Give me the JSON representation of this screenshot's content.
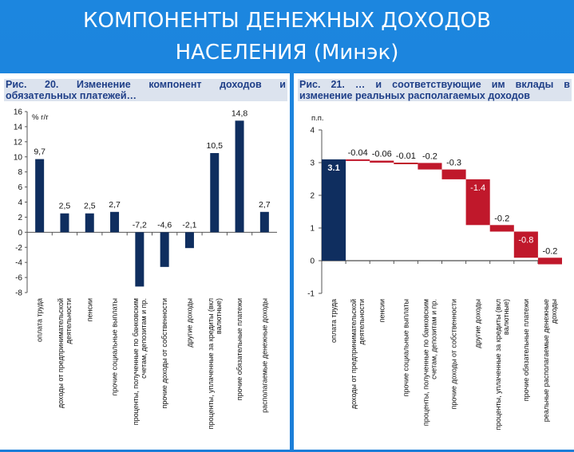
{
  "slide": {
    "title_line1": "КОМПОНЕНТЫ ДЕНЕЖНЫХ ДОХОДОВ",
    "title_line2": "НАСЕЛЕНИЯ (Минэк)"
  },
  "chart_data": [
    {
      "type": "bar",
      "caption_line1": "Рис.  20.  Изменение  компонент  доходов  и",
      "caption_line2": "обязательных платежей…",
      "ylabel": "% г/г",
      "ylim": [
        -8,
        16
      ],
      "yticks": [
        -8,
        -6,
        -4,
        -2,
        0,
        2,
        4,
        6,
        8,
        10,
        12,
        14,
        16
      ],
      "bar_color": "#0f2e5f",
      "categories": [
        "оплата труда",
        "доходы от предпринимательской деятельности",
        "пенсии",
        "прочие социальные выплаты",
        "проценты, полученные по банковским счетам, депозитам и пр.",
        "прочие доходы от собственности",
        "другие доходы",
        "проценты, уплаченные за кредиты (вкл валютные)",
        "прочие обязательные платежи",
        "располагаемые денежные доходы"
      ],
      "values": [
        9.7,
        2.5,
        2.5,
        2.7,
        -7.2,
        -4.6,
        -2.1,
        10.5,
        14.8,
        2.7
      ],
      "labels": [
        "9,7",
        "2,5",
        "2,5",
        "2,7",
        "-7,2",
        "-4,6",
        "-2,1",
        "10,5",
        "14,8",
        "2,7"
      ]
    },
    {
      "type": "waterfall",
      "caption_line1": "Рис.  21.  …  и  соответствующие  им  вклады  в",
      "caption_line2": "изменение реальных располагаемых доходов",
      "ylabel": "п.п.",
      "ylim": [
        -1,
        4
      ],
      "yticks": [
        -1,
        0,
        1,
        2,
        3,
        4
      ],
      "start_color": "#0f2e5f",
      "step_color": "#c0182b",
      "categories": [
        "оплата труда",
        "доходы от предпринимательской деятельности",
        "пенсии",
        "прочие социальные выплаты",
        "проценты, полученные по банковским счетам, депозитам и пр.",
        "прочие доходы от собственности",
        "другие доходы",
        "проценты, уплаченные за кредиты (вкл валютные)",
        "прочие обязательные платежи",
        "реальные располагаемые денежные доходы"
      ],
      "values": [
        3.1,
        -0.04,
        -0.06,
        -0.01,
        -0.2,
        -0.3,
        -1.4,
        -0.2,
        -0.8,
        -0.2
      ],
      "labels": [
        "3.1",
        "-0.04",
        "-0.06",
        "-0.01",
        "-0.2",
        "-0.3",
        "-1.4",
        "-0.2",
        "-0.8",
        "-0.2"
      ]
    }
  ]
}
